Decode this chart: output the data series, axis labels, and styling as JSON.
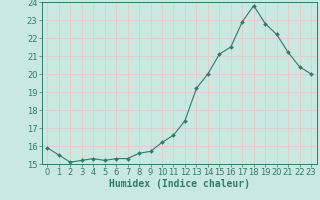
{
  "title": "",
  "xlabel": "Humidex (Indice chaleur)",
  "ylabel": "",
  "xlim": [
    -0.5,
    23.5
  ],
  "ylim": [
    15,
    24
  ],
  "yticks": [
    15,
    16,
    17,
    18,
    19,
    20,
    21,
    22,
    23,
    24
  ],
  "xticks": [
    0,
    1,
    2,
    3,
    4,
    5,
    6,
    7,
    8,
    9,
    10,
    11,
    12,
    13,
    14,
    15,
    16,
    17,
    18,
    19,
    20,
    21,
    22,
    23
  ],
  "x": [
    0,
    1,
    2,
    3,
    4,
    5,
    6,
    7,
    8,
    9,
    10,
    11,
    12,
    13,
    14,
    15,
    16,
    17,
    18,
    19,
    20,
    21,
    22,
    23
  ],
  "y": [
    15.9,
    15.5,
    15.1,
    15.2,
    15.3,
    15.2,
    15.3,
    15.3,
    15.6,
    15.7,
    16.2,
    16.6,
    17.4,
    19.2,
    20.0,
    21.1,
    21.5,
    22.9,
    23.8,
    22.8,
    22.2,
    21.2,
    20.4,
    20.0
  ],
  "line_color": "#2d7d6e",
  "marker": "D",
  "marker_size": 2.0,
  "bg_color": "#c8e8e0",
  "grid_color": "#e8c8c8",
  "axes_color": "#2d7d6e",
  "tick_color": "#2d7d6e",
  "label_color": "#2d7d6e",
  "xlabel_fontsize": 7,
  "tick_fontsize": 6
}
